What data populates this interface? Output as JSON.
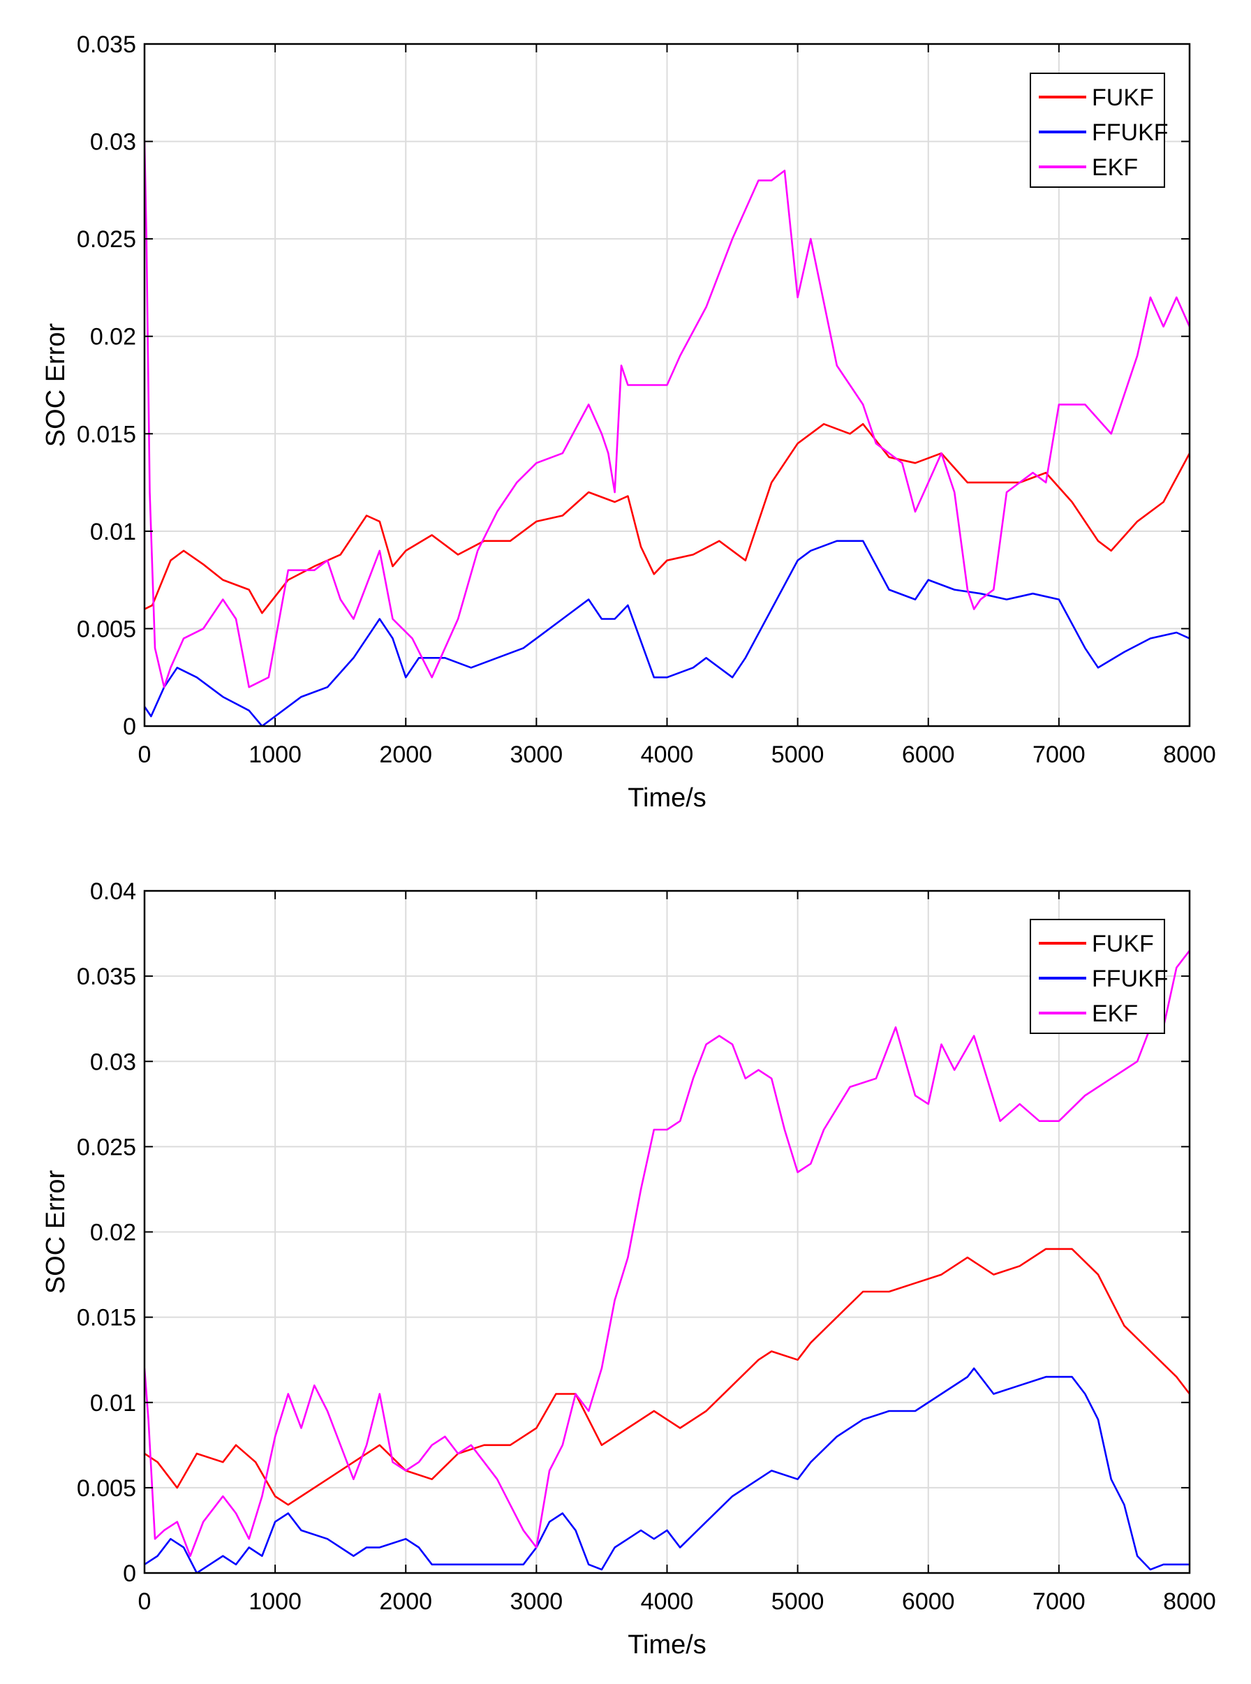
{
  "chart_data": [
    {
      "type": "line",
      "title": "",
      "xlabel": "Time/s",
      "ylabel": "SOC Error",
      "xlim": [
        0,
        8000
      ],
      "ylim": [
        0,
        0.035
      ],
      "xticks": [
        0,
        1000,
        2000,
        3000,
        4000,
        5000,
        6000,
        7000,
        8000
      ],
      "xtick_labels": [
        "0",
        "1000",
        "2000",
        "3000",
        "4000",
        "5000",
        "6000",
        "7000",
        "8000"
      ],
      "yticks": [
        0,
        0.005,
        0.01,
        0.015,
        0.02,
        0.025,
        0.03,
        0.035
      ],
      "ytick_labels": [
        "0",
        "0.005",
        "0.01",
        "0.015",
        "0.02",
        "0.025",
        "0.03",
        "0.035"
      ],
      "grid": true,
      "legend_position": "top-right",
      "series": [
        {
          "name": "FUKF",
          "color": "#ff0000",
          "x": [
            0,
            60,
            200,
            300,
            450,
            600,
            800,
            900,
            1100,
            1300,
            1500,
            1700,
            1800,
            1900,
            2000,
            2200,
            2400,
            2600,
            2800,
            3000,
            3200,
            3400,
            3600,
            3700,
            3800,
            3900,
            4000,
            4200,
            4400,
            4600,
            4800,
            5000,
            5200,
            5400,
            5500,
            5700,
            5900,
            6100,
            6300,
            6500,
            6700,
            6900,
            7100,
            7300,
            7400,
            7600,
            7800,
            8000
          ],
          "y": [
            0.006,
            0.0062,
            0.0085,
            0.009,
            0.0083,
            0.0075,
            0.007,
            0.0058,
            0.0075,
            0.0082,
            0.0088,
            0.0108,
            0.0105,
            0.0082,
            0.009,
            0.0098,
            0.0088,
            0.0095,
            0.0095,
            0.0105,
            0.0108,
            0.012,
            0.0115,
            0.0118,
            0.0092,
            0.0078,
            0.0085,
            0.0088,
            0.0095,
            0.0085,
            0.0125,
            0.0145,
            0.0155,
            0.015,
            0.0155,
            0.0138,
            0.0135,
            0.014,
            0.0125,
            0.0125,
            0.0125,
            0.013,
            0.0115,
            0.0095,
            0.009,
            0.0105,
            0.0115,
            0.014
          ]
        },
        {
          "name": "FFUKF",
          "color": "#0000ff",
          "x": [
            0,
            50,
            150,
            250,
            400,
            600,
            800,
            900,
            1000,
            1200,
            1400,
            1600,
            1800,
            1900,
            2000,
            2100,
            2300,
            2500,
            2700,
            2900,
            3000,
            3200,
            3400,
            3500,
            3600,
            3700,
            3900,
            4000,
            4200,
            4300,
            4500,
            4600,
            4800,
            5000,
            5100,
            5300,
            5500,
            5700,
            5900,
            6000,
            6200,
            6400,
            6600,
            6800,
            7000,
            7200,
            7300,
            7500,
            7700,
            7900,
            8000
          ],
          "y": [
            0.001,
            0.0005,
            0.002,
            0.003,
            0.0025,
            0.0015,
            0.0008,
            0.0,
            0.0005,
            0.0015,
            0.002,
            0.0035,
            0.0055,
            0.0045,
            0.0025,
            0.0035,
            0.0035,
            0.003,
            0.0035,
            0.004,
            0.0045,
            0.0055,
            0.0065,
            0.0055,
            0.0055,
            0.0062,
            0.0025,
            0.0025,
            0.003,
            0.0035,
            0.0025,
            0.0035,
            0.006,
            0.0085,
            0.009,
            0.0095,
            0.0095,
            0.007,
            0.0065,
            0.0075,
            0.007,
            0.0068,
            0.0065,
            0.0068,
            0.0065,
            0.004,
            0.003,
            0.0038,
            0.0045,
            0.0048,
            0.0045
          ]
        },
        {
          "name": "EKF",
          "color": "#ff00ff",
          "x": [
            0,
            15,
            40,
            80,
            150,
            200,
            300,
            450,
            600,
            700,
            800,
            950,
            1100,
            1300,
            1400,
            1500,
            1600,
            1800,
            1900,
            2050,
            2200,
            2400,
            2550,
            2700,
            2850,
            3000,
            3200,
            3400,
            3500,
            3550,
            3600,
            3650,
            3700,
            3800,
            4000,
            4100,
            4300,
            4500,
            4700,
            4800,
            4900,
            5000,
            5100,
            5300,
            5500,
            5600,
            5800,
            5900,
            6000,
            6100,
            6200,
            6300,
            6350,
            6400,
            6500,
            6600,
            6800,
            6900,
            7000,
            7200,
            7400,
            7600,
            7700,
            7800,
            7900,
            8000
          ],
          "y": [
            0.03,
            0.025,
            0.012,
            0.004,
            0.002,
            0.003,
            0.0045,
            0.005,
            0.0065,
            0.0055,
            0.002,
            0.0025,
            0.008,
            0.008,
            0.0085,
            0.0065,
            0.0055,
            0.009,
            0.0055,
            0.0045,
            0.0025,
            0.0055,
            0.009,
            0.011,
            0.0125,
            0.0135,
            0.014,
            0.0165,
            0.015,
            0.014,
            0.012,
            0.0185,
            0.0175,
            0.0175,
            0.0175,
            0.019,
            0.0215,
            0.025,
            0.028,
            0.028,
            0.0285,
            0.022,
            0.025,
            0.0185,
            0.0165,
            0.0145,
            0.0135,
            0.011,
            0.0125,
            0.014,
            0.012,
            0.007,
            0.006,
            0.0065,
            0.007,
            0.012,
            0.013,
            0.0125,
            0.0165,
            0.0165,
            0.015,
            0.019,
            0.022,
            0.0205,
            0.022,
            0.0205
          ]
        }
      ]
    },
    {
      "type": "line",
      "title": "",
      "xlabel": "Time/s",
      "ylabel": "SOC Error",
      "xlim": [
        0,
        8000
      ],
      "ylim": [
        0,
        0.04
      ],
      "xticks": [
        0,
        1000,
        2000,
        3000,
        4000,
        5000,
        6000,
        7000,
        8000
      ],
      "xtick_labels": [
        "0",
        "1000",
        "2000",
        "3000",
        "4000",
        "5000",
        "6000",
        "7000",
        "8000"
      ],
      "yticks": [
        0,
        0.005,
        0.01,
        0.015,
        0.02,
        0.025,
        0.03,
        0.035,
        0.04
      ],
      "ytick_labels": [
        "0",
        "0.005",
        "0.01",
        "0.015",
        "0.02",
        "0.025",
        "0.03",
        "0.035",
        "0.04"
      ],
      "grid": true,
      "legend_position": "top-right",
      "series": [
        {
          "name": "FUKF",
          "color": "#ff0000",
          "x": [
            0,
            100,
            250,
            400,
            600,
            700,
            850,
            1000,
            1100,
            1200,
            1400,
            1600,
            1800,
            2000,
            2200,
            2400,
            2600,
            2800,
            3000,
            3150,
            3300,
            3500,
            3700,
            3900,
            4000,
            4100,
            4300,
            4500,
            4700,
            4800,
            5000,
            5100,
            5300,
            5500,
            5700,
            5900,
            6100,
            6300,
            6500,
            6700,
            6900,
            7100,
            7300,
            7500,
            7700,
            7900,
            8000
          ],
          "y": [
            0.007,
            0.0065,
            0.005,
            0.007,
            0.0065,
            0.0075,
            0.0065,
            0.0045,
            0.004,
            0.0045,
            0.0055,
            0.0065,
            0.0075,
            0.006,
            0.0055,
            0.007,
            0.0075,
            0.0075,
            0.0085,
            0.0105,
            0.0105,
            0.0075,
            0.0085,
            0.0095,
            0.009,
            0.0085,
            0.0095,
            0.011,
            0.0125,
            0.013,
            0.0125,
            0.0135,
            0.015,
            0.0165,
            0.0165,
            0.017,
            0.0175,
            0.0185,
            0.0175,
            0.018,
            0.019,
            0.019,
            0.0175,
            0.0145,
            0.013,
            0.0115,
            0.0105
          ]
        },
        {
          "name": "FFUKF",
          "color": "#0000ff",
          "x": [
            0,
            100,
            200,
            300,
            400,
            500,
            600,
            700,
            800,
            900,
            1000,
            1100,
            1200,
            1400,
            1600,
            1700,
            1800,
            2000,
            2100,
            2200,
            2300,
            2500,
            2700,
            2900,
            3000,
            3100,
            3200,
            3300,
            3400,
            3500,
            3600,
            3700,
            3800,
            3900,
            4000,
            4100,
            4300,
            4500,
            4700,
            4800,
            5000,
            5100,
            5300,
            5500,
            5700,
            5900,
            6100,
            6300,
            6350,
            6500,
            6700,
            6900,
            7100,
            7200,
            7300,
            7400,
            7500,
            7600,
            7700,
            7800,
            7900,
            8000
          ],
          "y": [
            0.0005,
            0.001,
            0.002,
            0.0015,
            0.0,
            0.0005,
            0.001,
            0.0005,
            0.0015,
            0.001,
            0.003,
            0.0035,
            0.0025,
            0.002,
            0.001,
            0.0015,
            0.0015,
            0.002,
            0.0015,
            0.0005,
            0.0005,
            0.0005,
            0.0005,
            0.0005,
            0.0015,
            0.003,
            0.0035,
            0.0025,
            0.0005,
            0.0002,
            0.0015,
            0.002,
            0.0025,
            0.002,
            0.0025,
            0.0015,
            0.003,
            0.0045,
            0.0055,
            0.006,
            0.0055,
            0.0065,
            0.008,
            0.009,
            0.0095,
            0.0095,
            0.0105,
            0.0115,
            0.012,
            0.0105,
            0.011,
            0.0115,
            0.0115,
            0.0105,
            0.009,
            0.0055,
            0.004,
            0.001,
            0.0002,
            0.0005,
            0.0005,
            0.0005
          ]
        },
        {
          "name": "EKF",
          "color": "#ff00ff",
          "x": [
            0,
            30,
            80,
            150,
            250,
            350,
            450,
            600,
            700,
            800,
            900,
            1000,
            1100,
            1200,
            1300,
            1400,
            1500,
            1600,
            1700,
            1800,
            1900,
            2000,
            2100,
            2200,
            2300,
            2400,
            2500,
            2600,
            2700,
            2800,
            2900,
            3000,
            3100,
            3200,
            3300,
            3400,
            3500,
            3600,
            3700,
            3800,
            3900,
            4000,
            4100,
            4200,
            4300,
            4400,
            4500,
            4600,
            4700,
            4800,
            4900,
            5000,
            5100,
            5200,
            5400,
            5600,
            5750,
            5900,
            6000,
            6100,
            6200,
            6350,
            6450,
            6550,
            6700,
            6850,
            7000,
            7200,
            7400,
            7500,
            7600,
            7700,
            7800,
            7900,
            8000
          ],
          "y": [
            0.012,
            0.009,
            0.002,
            0.0025,
            0.003,
            0.001,
            0.003,
            0.0045,
            0.0035,
            0.002,
            0.0045,
            0.008,
            0.0105,
            0.0085,
            0.011,
            0.0095,
            0.0075,
            0.0055,
            0.0075,
            0.0105,
            0.0065,
            0.006,
            0.0065,
            0.0075,
            0.008,
            0.007,
            0.0075,
            0.0065,
            0.0055,
            0.004,
            0.0025,
            0.0015,
            0.006,
            0.0075,
            0.0105,
            0.0095,
            0.012,
            0.016,
            0.0185,
            0.0225,
            0.026,
            0.026,
            0.0265,
            0.029,
            0.031,
            0.0315,
            0.031,
            0.029,
            0.0295,
            0.029,
            0.026,
            0.0235,
            0.024,
            0.026,
            0.0285,
            0.029,
            0.032,
            0.028,
            0.0275,
            0.031,
            0.0295,
            0.0315,
            0.029,
            0.0265,
            0.0275,
            0.0265,
            0.0265,
            0.028,
            0.029,
            0.0295,
            0.03,
            0.032,
            0.032,
            0.0355,
            0.0365
          ]
        }
      ]
    }
  ]
}
